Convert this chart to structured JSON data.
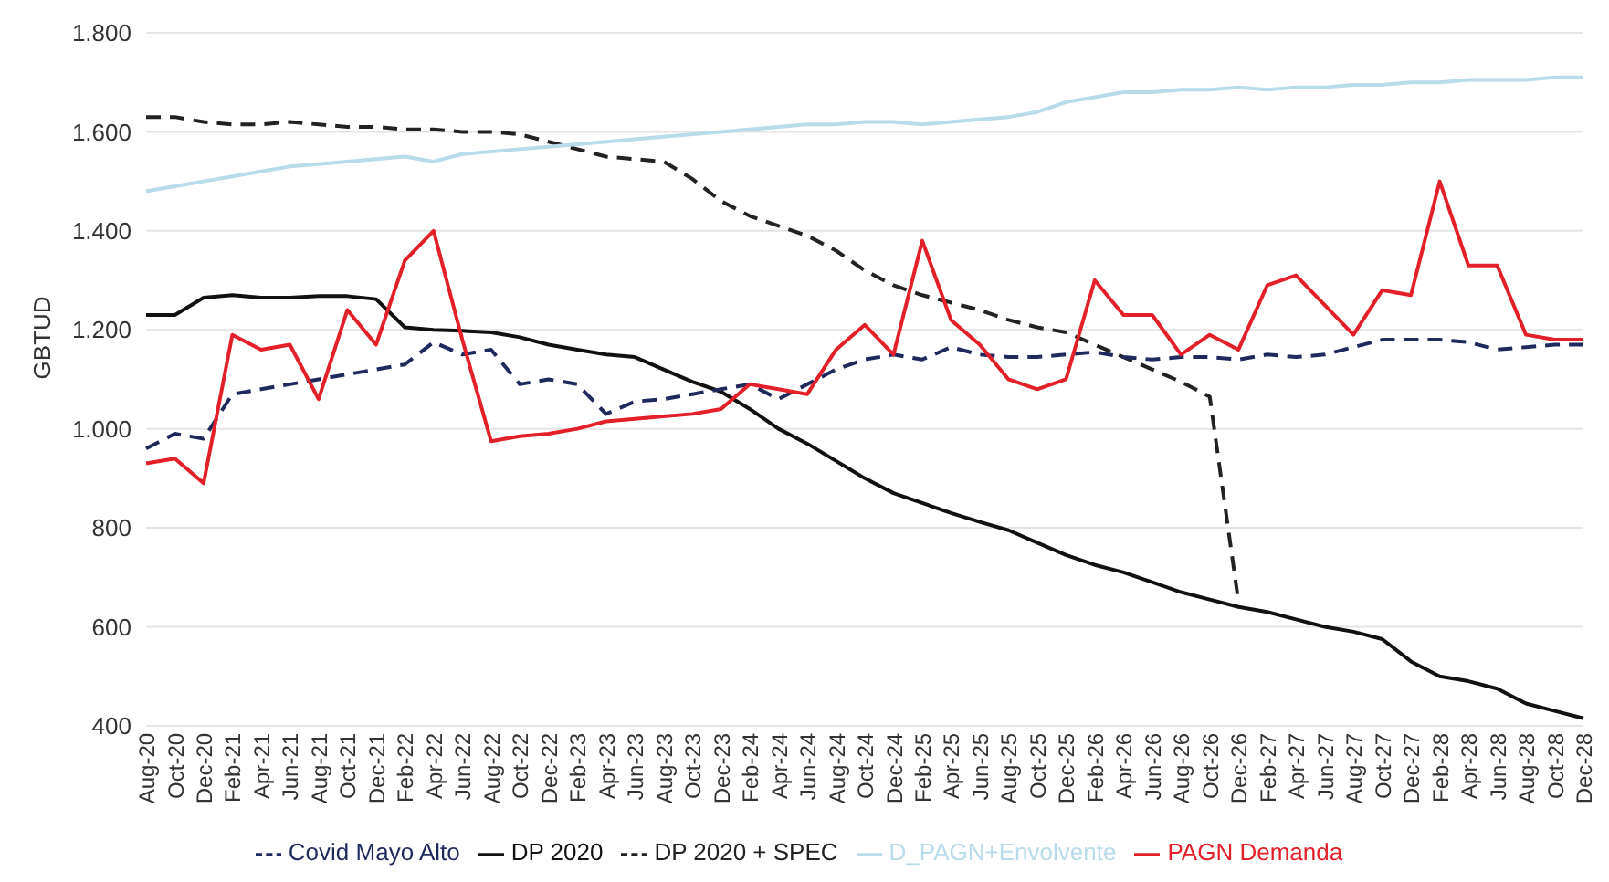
{
  "chart_data": {
    "type": "line",
    "ylabel": "GBTUD",
    "categories": [
      "Aug-20",
      "Oct-20",
      "Dec-20",
      "Feb-21",
      "Apr-21",
      "Jun-21",
      "Aug-21",
      "Oct-21",
      "Dec-21",
      "Feb-22",
      "Apr-22",
      "Jun-22",
      "Aug-22",
      "Oct-22",
      "Dec-22",
      "Feb-23",
      "Apr-23",
      "Jun-23",
      "Aug-23",
      "Oct-23",
      "Dec-23",
      "Feb-24",
      "Apr-24",
      "Jun-24",
      "Aug-24",
      "Oct-24",
      "Dec-24",
      "Feb-25",
      "Apr-25",
      "Jun-25",
      "Aug-25",
      "Oct-25",
      "Dec-25",
      "Feb-26",
      "Apr-26",
      "Jun-26",
      "Aug-26",
      "Oct-26",
      "Dec-26",
      "Feb-27",
      "Apr-27",
      "Jun-27",
      "Aug-27",
      "Oct-27",
      "Dec-27",
      "Feb-28",
      "Apr-28",
      "Jun-28",
      "Aug-28",
      "Oct-28",
      "Dec-28"
    ],
    "series": [
      {
        "name": "DP 2020 + SPEC",
        "color": "#222222",
        "line_style": "dashed",
        "values": [
          1630,
          1630,
          1620,
          1615,
          1615,
          1620,
          1615,
          1610,
          1610,
          1605,
          1605,
          1600,
          1600,
          1595,
          1580,
          1565,
          1550,
          1545,
          1540,
          1505,
          1460,
          1430,
          1410,
          1390,
          1360,
          1320,
          1290,
          1270,
          1255,
          1240,
          1220,
          1205,
          1195,
          1170,
          1145,
          1120,
          1095,
          1065,
          650,
          null,
          null,
          null,
          null,
          null,
          null,
          null,
          null,
          null,
          null,
          null,
          null
        ]
      },
      {
        "name": "DP 2020",
        "color": "#111111",
        "line_style": "solid",
        "values": [
          1230,
          1230,
          1265,
          1270,
          1265,
          1265,
          1268,
          1268,
          1262,
          1205,
          1200,
          1198,
          1195,
          1185,
          1170,
          1160,
          1150,
          1145,
          1120,
          1095,
          1075,
          1040,
          1000,
          970,
          935,
          900,
          870,
          850,
          830,
          812,
          795,
          770,
          745,
          725,
          710,
          690,
          670,
          655,
          640,
          630,
          615,
          600,
          590,
          575,
          530,
          500,
          490,
          475,
          445,
          430,
          415
        ]
      },
      {
        "name": "Covid Mayo Alto",
        "color": "#1f2a5c",
        "line_style": "dashed",
        "values": [
          960,
          990,
          980,
          1070,
          1080,
          1090,
          1100,
          1110,
          1120,
          1130,
          1175,
          1150,
          1160,
          1090,
          1100,
          1090,
          1030,
          1055,
          1060,
          1070,
          1080,
          1090,
          1060,
          1090,
          1120,
          1140,
          1150,
          1140,
          1165,
          1150,
          1145,
          1145,
          1150,
          1155,
          1145,
          1140,
          1145,
          1145,
          1140,
          1150,
          1145,
          1150,
          1165,
          1180,
          1180,
          1180,
          1175,
          1160,
          1165,
          1170,
          1170
        ]
      },
      {
        "name": "PAGN Demanda",
        "color": "#e3202a",
        "line_style": "solid",
        "values": [
          930,
          940,
          890,
          1190,
          1160,
          1170,
          1060,
          1240,
          1170,
          1340,
          1400,
          1180,
          975,
          985,
          990,
          1000,
          1015,
          1020,
          1025,
          1030,
          1040,
          1090,
          1080,
          1070,
          1160,
          1210,
          1150,
          1380,
          1220,
          1170,
          1100,
          1080,
          1100,
          1300,
          1230,
          1230,
          1150,
          1190,
          1160,
          1290,
          1310,
          1250,
          1190,
          1280,
          1270,
          1500,
          1330,
          1330,
          1190,
          1180,
          1180
        ]
      },
      {
        "name": "D_PAGN+Envolvente",
        "color": "#b7dbe8",
        "line_style": "solid",
        "values": [
          1480,
          1490,
          1500,
          1510,
          1520,
          1530,
          1535,
          1540,
          1545,
          1550,
          1540,
          1555,
          1560,
          1565,
          1570,
          1575,
          1580,
          1585,
          1590,
          1595,
          1600,
          1605,
          1610,
          1615,
          1615,
          1620,
          1620,
          1615,
          1620,
          1625,
          1630,
          1640,
          1660,
          1670,
          1680,
          1680,
          1685,
          1685,
          1690,
          1685,
          1690,
          1690,
          1695,
          1695,
          1700,
          1700,
          1705,
          1705,
          1705,
          1710,
          1710
        ]
      }
    ],
    "ylim": [
      400,
      1800
    ],
    "yticks": [
      {
        "value": 400,
        "label": "400"
      },
      {
        "value": 600,
        "label": "600"
      },
      {
        "value": 800,
        "label": "800"
      },
      {
        "value": 1000,
        "label": "1.000"
      },
      {
        "value": 1200,
        "label": "1.200"
      },
      {
        "value": 1400,
        "label": "1.400"
      },
      {
        "value": 1600,
        "label": "1.600"
      },
      {
        "value": 1800,
        "label": "1.800"
      }
    ],
    "grid": "y",
    "legend": "bottom",
    "marker": "none"
  }
}
